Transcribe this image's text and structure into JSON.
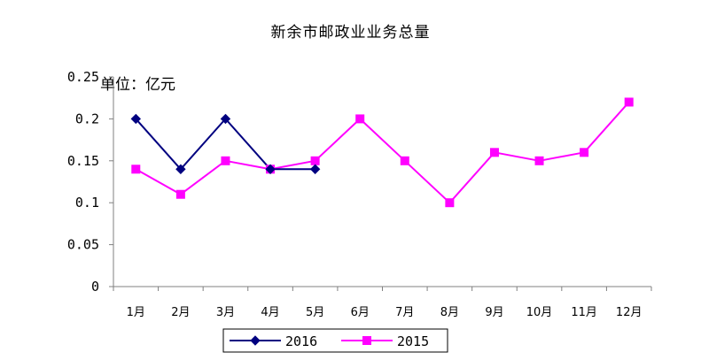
{
  "chart_data": {
    "type": "line",
    "title": "新余市邮政业业务总量",
    "unit_label": "单位：亿元",
    "categories": [
      "1月",
      "2月",
      "3月",
      "4月",
      "5月",
      "6月",
      "7月",
      "8月",
      "9月",
      "10月",
      "11月",
      "12月"
    ],
    "y_ticks": [
      "0",
      "0.05",
      "0.1",
      "0.15",
      "0.2",
      "0.25"
    ],
    "ylim": [
      0,
      0.25
    ],
    "grid": false,
    "legend_position": "bottom",
    "series": [
      {
        "name": "2016",
        "color": "#000080",
        "marker": "diamond",
        "values": [
          0.2,
          0.14,
          0.2,
          0.14,
          0.14,
          null,
          null,
          null,
          null,
          null,
          null,
          null
        ]
      },
      {
        "name": "2015",
        "color": "#ff00ff",
        "marker": "square",
        "values": [
          0.14,
          0.11,
          0.15,
          0.14,
          0.15,
          0.2,
          0.15,
          0.1,
          0.16,
          0.15,
          0.16,
          0.22
        ]
      }
    ]
  }
}
